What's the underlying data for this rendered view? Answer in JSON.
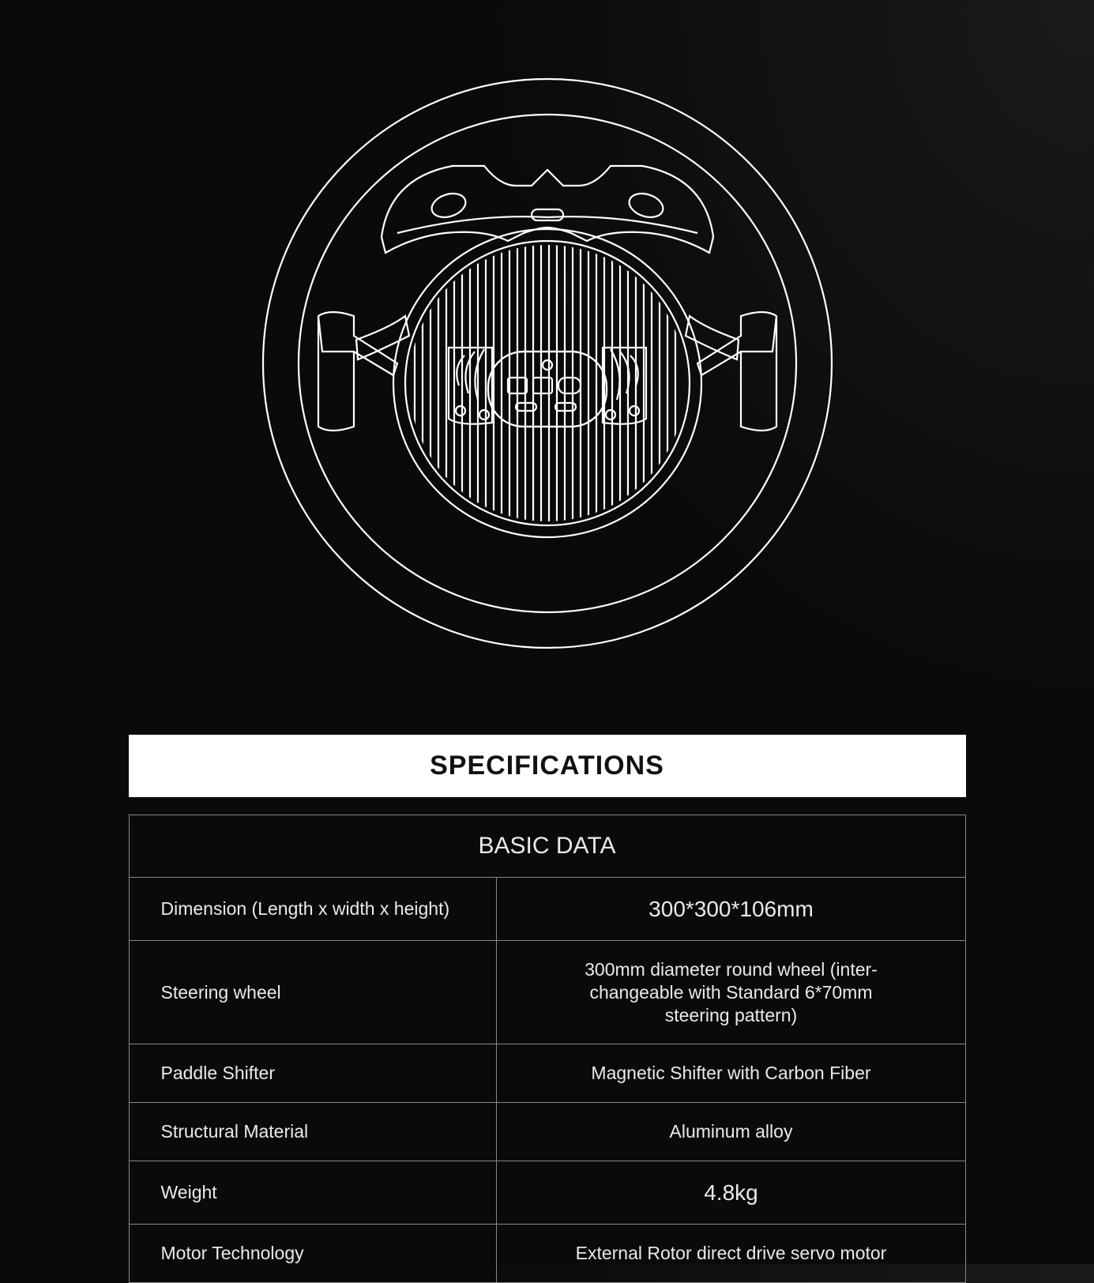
{
  "colors": {
    "background": "#0f0f0f",
    "stroke": "#ffffff",
    "table_border": "#888888",
    "text": "#eaeaea",
    "title_bg": "#ffffff",
    "title_fg": "#111111"
  },
  "diagram": {
    "type": "line-drawing",
    "subject": "steering-wheel-rear-view",
    "stroke_width": 2.2,
    "outer_ring_radius": 360,
    "inner_ring_radius": 315,
    "motor_radius": 195
  },
  "specs": {
    "title": "SPECIFICATIONS",
    "section": "BASIC DATA",
    "rows": [
      {
        "label": "Dimension (Length x width x height)",
        "value": "300*300*106mm",
        "big": true
      },
      {
        "label": "Steering wheel",
        "value": "300mm diameter round wheel (inter-\nchangeable with Standard 6*70mm\nsteering pattern)"
      },
      {
        "label": "Paddle Shifter",
        "value": "Magnetic Shifter with Carbon Fiber"
      },
      {
        "label": "Structural Material",
        "value": "Aluminum alloy"
      },
      {
        "label": "Weight",
        "value": "4.8kg",
        "big": true
      },
      {
        "label": "Motor Technology",
        "value": "External Rotor direct drive servo motor"
      }
    ]
  }
}
